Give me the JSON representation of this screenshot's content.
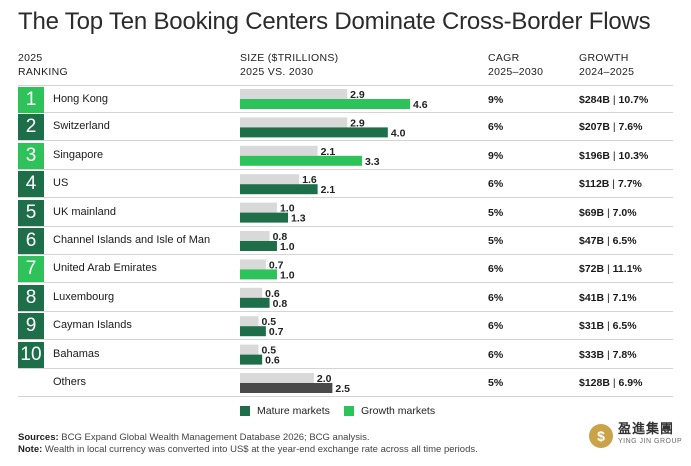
{
  "title": "The Top Ten Booking Centers Dominate Cross-Border Flows",
  "headers": {
    "ranking_line1": "2025",
    "ranking_line2": "RANKING",
    "size_line1": "SIZE ($TRILLIONS)",
    "size_line2": "2025 VS. 2030",
    "cagr_line1": "CAGR",
    "cagr_line2": "2025–2030",
    "growth_line1": "GROWTH",
    "growth_line2": "2024–2025"
  },
  "colors": {
    "mature": "#1e6e4a",
    "growth": "#2ec25a",
    "bar2025": "#d9d9d9",
    "others2030": "#4a4a4a"
  },
  "chart_data": {
    "type": "bar",
    "orientation": "horizontal",
    "categories": [
      "Hong Kong",
      "Switzerland",
      "Singapore",
      "US",
      "UK mainland",
      "Channel Islands and Isle of Man",
      "United Arab Emirates",
      "Luxembourg",
      "Cayman Islands",
      "Bahamas",
      "Others"
    ],
    "ranks": [
      "1",
      "2",
      "3",
      "4",
      "5",
      "6",
      "7",
      "8",
      "9",
      "10",
      ""
    ],
    "market_type": [
      "growth",
      "mature",
      "growth",
      "mature",
      "mature",
      "mature",
      "growth",
      "mature",
      "mature",
      "mature",
      "others"
    ],
    "series": [
      {
        "name": "2025",
        "values": [
          2.9,
          2.9,
          2.1,
          1.6,
          1.0,
          0.8,
          0.7,
          0.6,
          0.5,
          0.5,
          2.0
        ]
      },
      {
        "name": "2030",
        "values": [
          4.6,
          4.0,
          3.3,
          2.1,
          1.3,
          1.0,
          1.0,
          0.8,
          0.7,
          0.6,
          2.5
        ]
      }
    ],
    "value_labels": {
      "2025": [
        "2.9",
        "2.9",
        "2.1",
        "1.6",
        "1.0",
        "0.8",
        "0.7",
        "0.6",
        "0.5",
        "0.5",
        "2.0"
      ],
      "2030": [
        "4.6",
        "4.0",
        "3.3",
        "2.1",
        "1.3",
        "1.0",
        "1.0",
        "0.8",
        "0.7",
        "0.6",
        "2.5"
      ]
    },
    "cagr": [
      "9%",
      "6%",
      "9%",
      "6%",
      "5%",
      "5%",
      "6%",
      "6%",
      "6%",
      "6%",
      "5%"
    ],
    "growth_amount": [
      "$284B",
      "$207B",
      "$196B",
      "$112B",
      "$69B",
      "$47B",
      "$72B",
      "$41B",
      "$31B",
      "$33B",
      "$128B"
    ],
    "growth_pct": [
      "10.7%",
      "7.6%",
      "10.3%",
      "7.7%",
      "7.0%",
      "6.5%",
      "11.1%",
      "7.1%",
      "6.5%",
      "7.8%",
      "6.9%"
    ],
    "xlim": [
      0,
      4.6
    ],
    "legend": [
      {
        "label": "Mature markets",
        "color": "#1e6e4a"
      },
      {
        "label": "Growth markets",
        "color": "#2ec25a"
      }
    ],
    "legend_position": "bottom"
  },
  "notes": {
    "sources_label": "Sources:",
    "sources_text": "BCG Expand Global Wealth Management Database 2026; BCG analysis.",
    "note_label": "Note:",
    "note_text": "Wealth in local currency was converted into US$ at the year-end exchange rate across all time periods."
  },
  "logo": {
    "chinese": "盈進集團",
    "english": "YING JIN GROUP",
    "mark_glyph": "$"
  }
}
